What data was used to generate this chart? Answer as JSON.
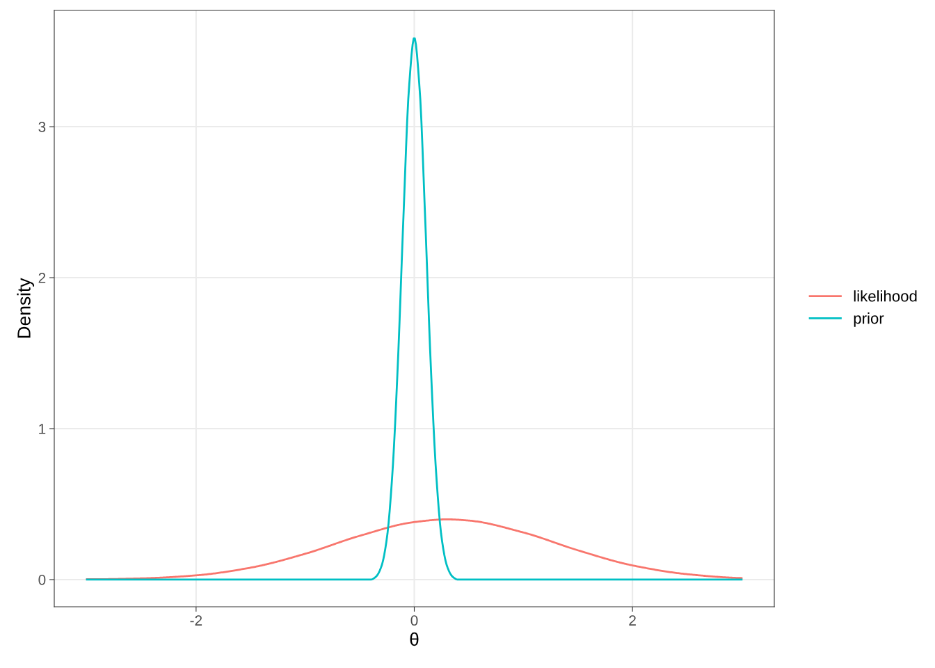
{
  "chart_data": {
    "type": "line",
    "xlabel": "θ",
    "ylabel": "Density",
    "xlim": [
      -3.3,
      3.3
    ],
    "ylim": [
      -0.18,
      3.77
    ],
    "xticks": [
      -2,
      0,
      2
    ],
    "yticks": [
      0,
      1,
      2,
      3
    ],
    "grid": true,
    "legend": "right",
    "marker": "none",
    "line_style": "solid",
    "series": [
      {
        "name": "likelihood",
        "color": "#f8766d",
        "x": [
          -3,
          -2.5,
          -2,
          -1.5,
          -1,
          -0.5,
          0,
          0.3,
          0.5,
          1,
          1.5,
          2,
          2.5,
          3
        ],
        "values": [
          0.002,
          0.008,
          0.028,
          0.079,
          0.171,
          0.29,
          0.381,
          0.399,
          0.391,
          0.312,
          0.194,
          0.094,
          0.036,
          0.01
        ]
      },
      {
        "name": "prior",
        "color": "#00bfc4",
        "x": [
          -3,
          -0.5,
          -0.4,
          -0.35,
          -0.3,
          -0.25,
          -0.2,
          -0.15,
          -0.1,
          -0.05,
          0,
          0.05,
          0.1,
          0.15,
          0.2,
          0.25,
          0.3,
          0.35,
          0.4,
          0.5,
          3
        ],
        "values": [
          0,
          0,
          0,
          0.02,
          0.09,
          0.28,
          0.71,
          1.44,
          2.39,
          3.24,
          3.59,
          3.24,
          2.39,
          1.44,
          0.71,
          0.28,
          0.09,
          0.02,
          0,
          0,
          0
        ]
      }
    ]
  }
}
